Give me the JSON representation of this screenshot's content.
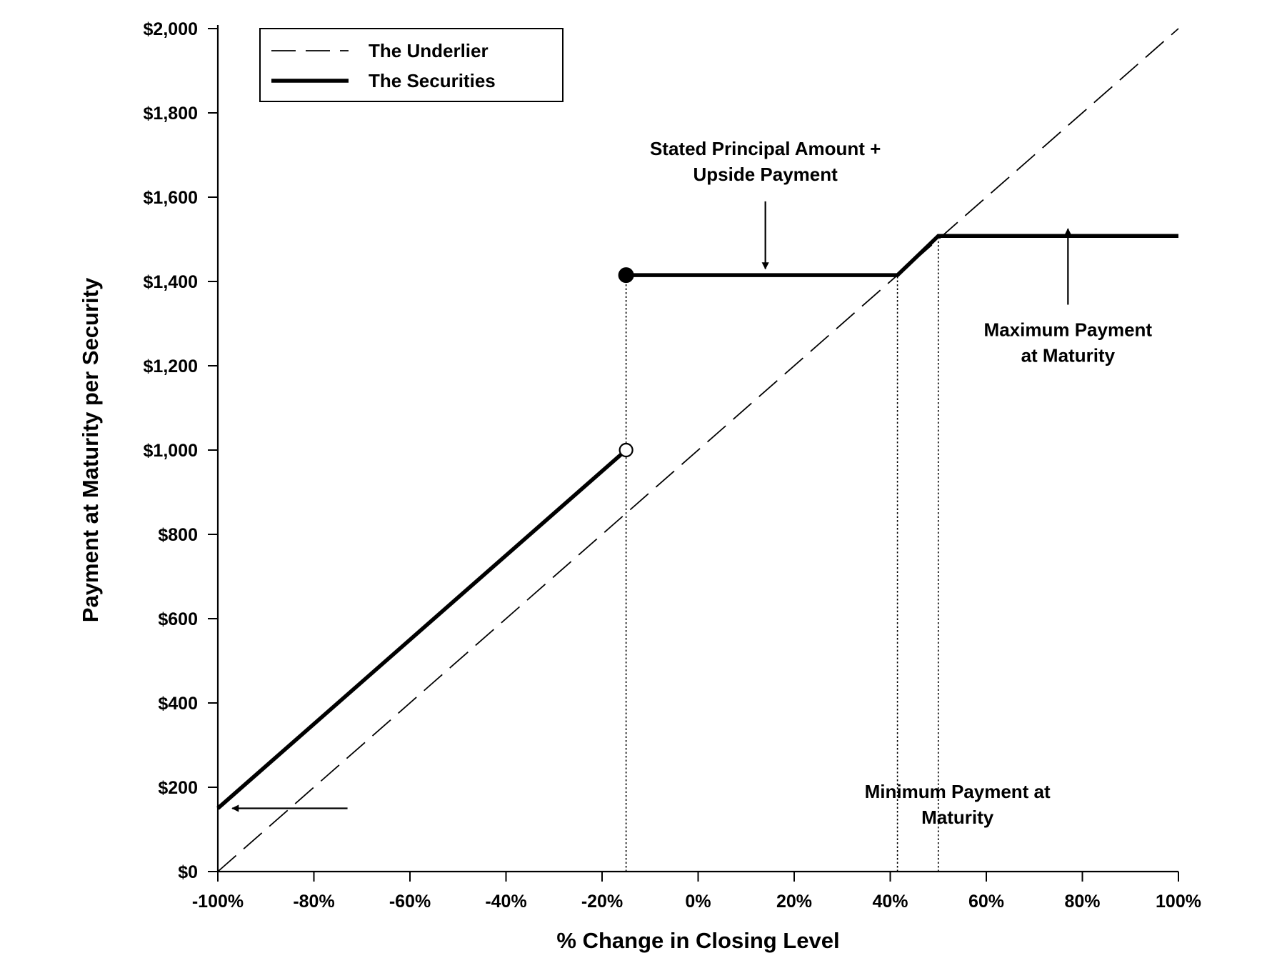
{
  "chart_data": {
    "type": "line",
    "title": "",
    "xlabel": "% Change in Closing Level",
    "ylabel": "Payment at Maturity per Security",
    "xlim": [
      -100,
      100
    ],
    "ylim": [
      0,
      2000
    ],
    "x_ticks": [
      -100,
      -80,
      -60,
      -40,
      -20,
      0,
      20,
      40,
      60,
      80,
      100
    ],
    "x_tick_labels": [
      "-100%",
      "-80%",
      "-60%",
      "-40%",
      "-20%",
      "0%",
      "20%",
      "40%",
      "60%",
      "80%",
      "100%"
    ],
    "y_ticks": [
      0,
      200,
      400,
      600,
      800,
      1000,
      1200,
      1400,
      1600,
      1800,
      2000
    ],
    "y_tick_labels": [
      "$0",
      "$200",
      "$400",
      "$600",
      "$800",
      "$1,000",
      "$1,200",
      "$1,400",
      "$1,600",
      "$1,800",
      "$2,000"
    ],
    "grid": false,
    "legend": {
      "position": "top-left",
      "entries": [
        {
          "name": "The Underlier",
          "style": "dashed"
        },
        {
          "name": "The Securities",
          "style": "solid-thick"
        }
      ]
    },
    "series": [
      {
        "name": "The Underlier",
        "style": "dashed",
        "points": [
          [
            -100,
            0
          ],
          [
            100,
            2000
          ]
        ]
      },
      {
        "name": "The Securities",
        "style": "solid-thick",
        "segments": [
          [
            [
              -100,
              150
            ],
            [
              -15,
              1000
            ]
          ],
          [
            [
              -15,
              1415
            ],
            [
              41.5,
              1415
            ],
            [
              50,
              1508
            ],
            [
              100,
              1508
            ]
          ]
        ]
      }
    ],
    "markers": [
      {
        "x": -15,
        "y": 1415,
        "kind": "filled-circle"
      },
      {
        "x": -15,
        "y": 1000,
        "kind": "open-circle"
      }
    ],
    "reference_lines": [
      {
        "x": -15,
        "y_from": 0,
        "y_to": 1415
      },
      {
        "x": 41.5,
        "y_from": 0,
        "y_to": 1415
      },
      {
        "x": 50,
        "y_from": 0,
        "y_to": 1508
      }
    ],
    "annotations": [
      {
        "lines": [
          "Stated Principal Amount +",
          "Upside Payment"
        ],
        "text_x": 14,
        "text_y": 1700,
        "arrow_from": [
          14,
          1590
        ],
        "arrow_to": [
          14,
          1430
        ]
      },
      {
        "lines": [
          "Maximum Payment",
          "at Maturity"
        ],
        "text_x": 77,
        "text_y": 1270,
        "arrow_from": [
          77,
          1345
        ],
        "arrow_to": [
          77,
          1525
        ]
      },
      {
        "lines": [
          "Minimum Payment at",
          "Maturity"
        ],
        "text_x": 54,
        "text_y": 175,
        "arrow_from": [
          -73,
          150
        ],
        "arrow_to": [
          -97,
          150
        ]
      }
    ]
  }
}
